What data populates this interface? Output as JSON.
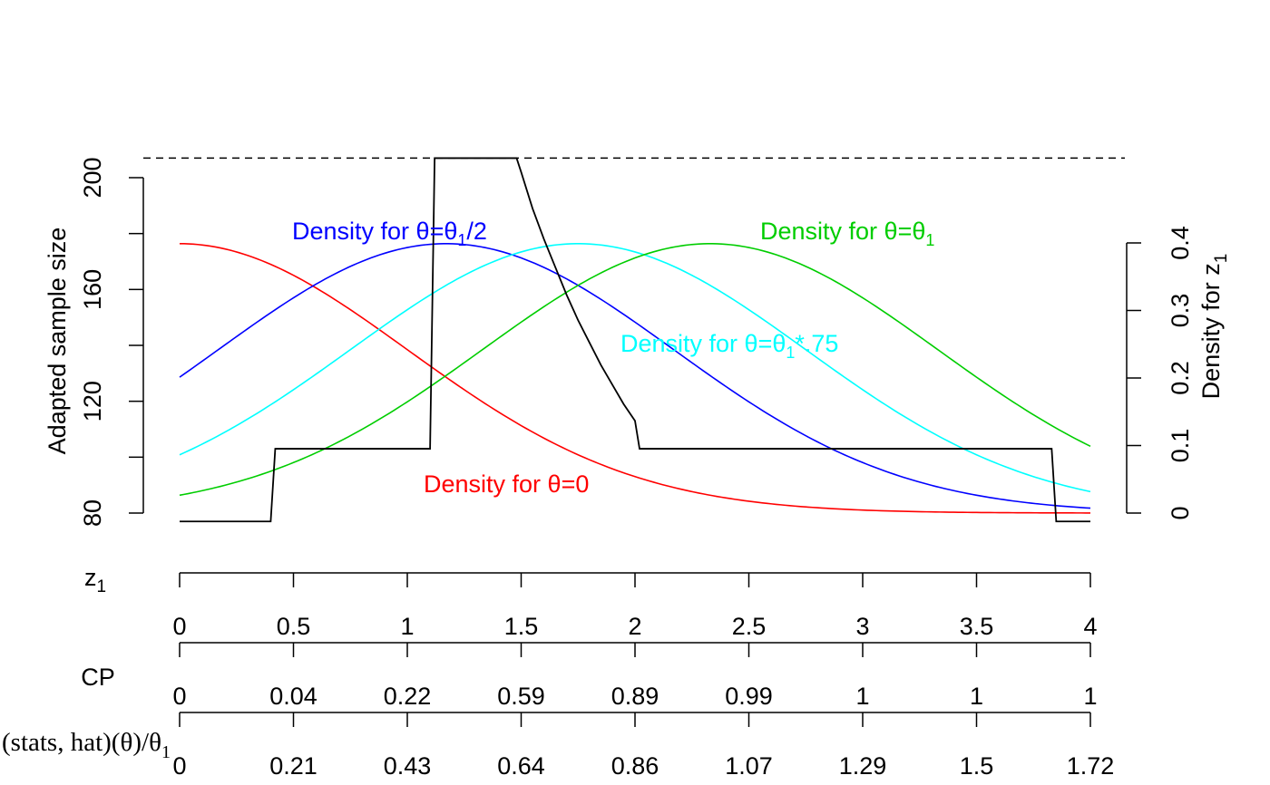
{
  "chart_data": {
    "type": "line",
    "left_axis": {
      "label": "Adapted sample size",
      "ticks": [
        80,
        120,
        160,
        200
      ],
      "minor_ticks": [
        100,
        140,
        180
      ],
      "range": [
        80,
        206.5
      ]
    },
    "right_axis": {
      "label": "Density for z",
      "label_subscript": "1",
      "ticks": [
        0,
        0.1,
        0.2,
        0.3,
        0.4
      ],
      "range": [
        0,
        0.4
      ]
    },
    "max_sample_size_line": 207,
    "sample_size": {
      "x": [
        0,
        0.4,
        0.42,
        1.1,
        1.12,
        1.48,
        1.5,
        1.55,
        1.6,
        1.65,
        1.7,
        1.75,
        1.8,
        1.85,
        1.9,
        1.95,
        2.0,
        2.02,
        3.83,
        3.85,
        4.0
      ],
      "y": [
        77,
        77,
        103,
        103,
        207,
        207,
        202,
        189,
        178,
        168,
        158,
        149,
        141,
        133,
        126,
        119,
        113,
        103,
        103,
        77,
        77
      ]
    },
    "z1_range": [
      0,
      4
    ],
    "density_series": [
      {
        "label": "Density for θ=0",
        "mean": 0.0,
        "color": "#ff0000"
      },
      {
        "label": "Density for θ=θ₁/2",
        "mean": 1.17,
        "color": "#0000ff"
      },
      {
        "label": "Density for θ=θ₁*.75",
        "mean": 1.75,
        "color": "#00ffff"
      },
      {
        "label": "Density for θ=θ₁",
        "mean": 2.33,
        "color": "#00cd00"
      }
    ],
    "series_labels": {
      "theta0": {
        "pre": "Density for ",
        "sym": "θ",
        "post": "=0"
      },
      "half": {
        "pre": "Density for ",
        "sym1": "θ",
        "eq": "=",
        "sym2": "θ",
        "sub": "1",
        "post": "/2"
      },
      "three_quarter": {
        "pre": "Density for ",
        "sym1": "θ",
        "eq": "=",
        "sym2": "θ",
        "sub": "1",
        "post": "*.75"
      },
      "full": {
        "pre": "Density for ",
        "sym1": "θ",
        "eq": "=",
        "sym2": "θ",
        "sub": "1",
        "post": ""
      }
    },
    "bottom_axes": [
      {
        "name": "z1",
        "label": "z",
        "label_subscript": "1",
        "tick_labels": [
          "0",
          "0.5",
          "1",
          "1.5",
          "2",
          "2.5",
          "3",
          "3.5",
          "4"
        ]
      },
      {
        "name": "cp",
        "label": "CP",
        "tick_labels": [
          "0",
          "0.04",
          "0.22",
          "0.59",
          "0.89",
          "0.99",
          "1",
          "1",
          "1"
        ]
      },
      {
        "name": "theta_hat",
        "label": "(stats, hat)(θ)/θ",
        "label_subscript": "1",
        "tick_labels": [
          "0",
          "0.21",
          "0.43",
          "0.64",
          "0.86",
          "1.07",
          "1.29",
          "1.5",
          "1.72"
        ]
      }
    ]
  }
}
